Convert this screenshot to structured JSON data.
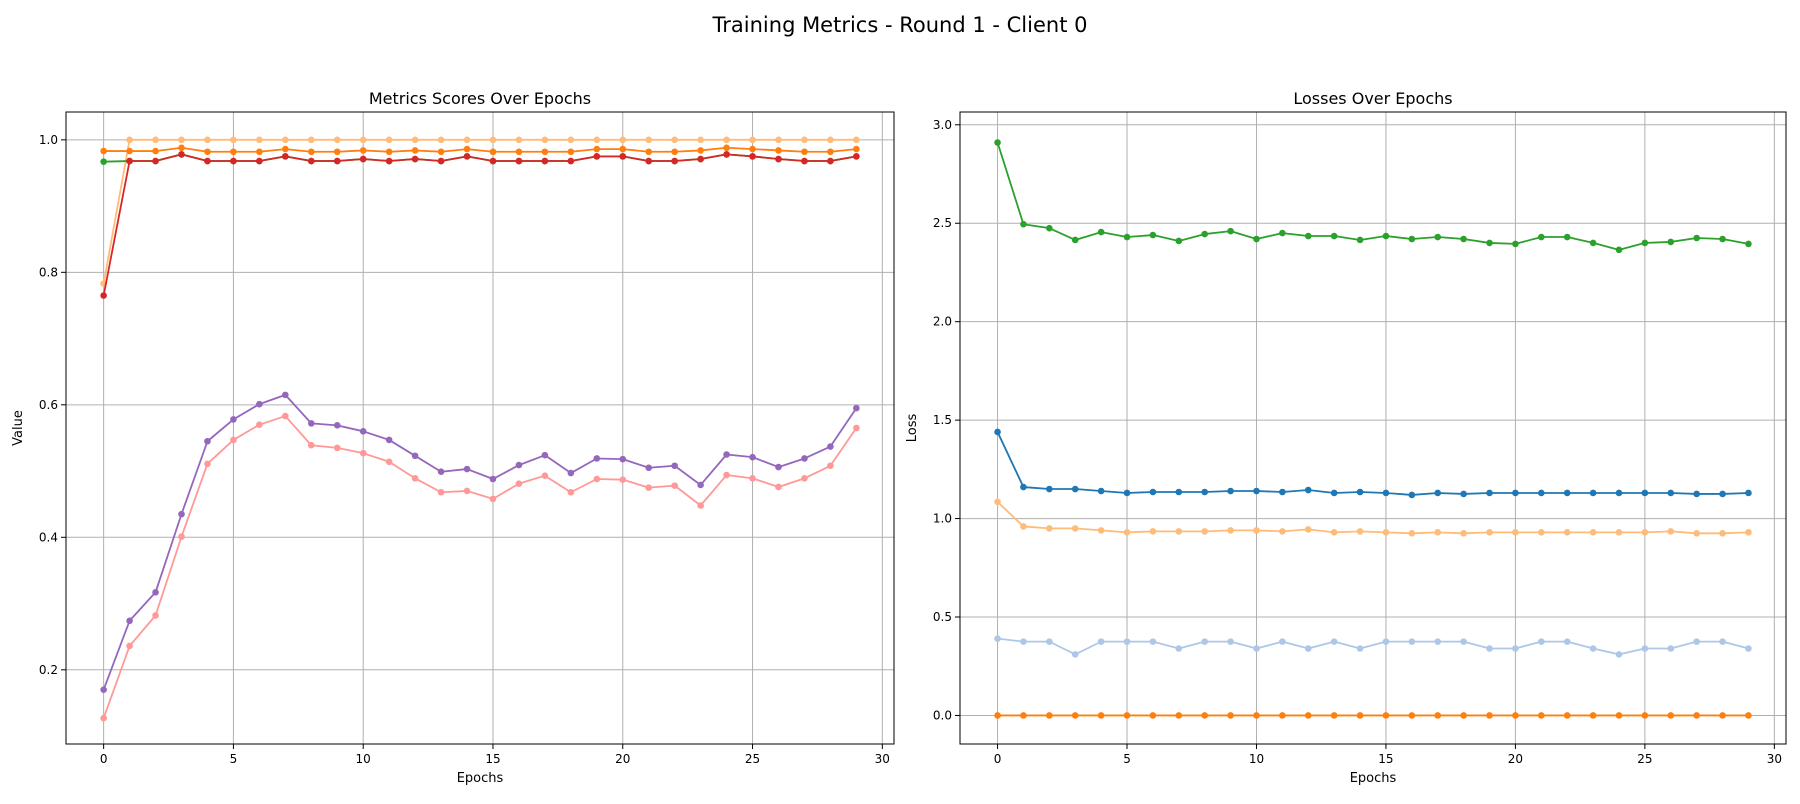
{
  "suptitle": "Training Metrics - Round 1 - Client 0",
  "chart_data": [
    {
      "type": "line",
      "title": "Metrics Scores Over Epochs",
      "xlabel": "Epochs",
      "ylabel": "Value",
      "xlim": [
        -1.45,
        30.45
      ],
      "ylim": [
        0.088,
        1.042
      ],
      "xticks": [
        0,
        5,
        10,
        15,
        20,
        25,
        30
      ],
      "yticks": [
        0.2,
        0.4,
        0.6,
        0.8,
        1.0
      ],
      "ytick_labels": [
        "0.2",
        "0.4",
        "0.6",
        "0.8",
        "1.0"
      ],
      "grid": true,
      "x": [
        0,
        1,
        2,
        3,
        4,
        5,
        6,
        7,
        8,
        9,
        10,
        11,
        12,
        13,
        14,
        15,
        16,
        17,
        18,
        19,
        20,
        21,
        22,
        23,
        24,
        25,
        26,
        27,
        28,
        29
      ],
      "series": [
        {
          "color": "#ffbb78",
          "values": [
            0.783,
            1.0,
            1.0,
            1.0,
            1.0,
            1.0,
            1.0,
            1.0,
            1.0,
            1.0,
            1.0,
            1.0,
            1.0,
            1.0,
            1.0,
            1.0,
            1.0,
            1.0,
            1.0,
            1.0,
            1.0,
            1.0,
            1.0,
            1.0,
            1.0,
            1.0,
            1.0,
            1.0,
            1.0,
            1.0
          ]
        },
        {
          "color": "#ff7f0e",
          "values": [
            0.983,
            0.983,
            0.983,
            0.988,
            0.982,
            0.982,
            0.982,
            0.986,
            0.982,
            0.982,
            0.984,
            0.982,
            0.984,
            0.982,
            0.986,
            0.982,
            0.982,
            0.982,
            0.982,
            0.986,
            0.986,
            0.982,
            0.982,
            0.984,
            0.988,
            0.986,
            0.984,
            0.982,
            0.982,
            0.986
          ]
        },
        {
          "color": "#2ca02c",
          "values": [
            0.967,
            0.968,
            0.968,
            0.978,
            0.968,
            0.968,
            0.968,
            0.975,
            0.968,
            0.968,
            0.971,
            0.968,
            0.971,
            0.968,
            0.975,
            0.968,
            0.968,
            0.968,
            0.968,
            0.975,
            0.975,
            0.968,
            0.968,
            0.971,
            0.978,
            0.975,
            0.971,
            0.968,
            0.968,
            0.975
          ]
        },
        {
          "color": "#d62728",
          "values": [
            0.765,
            0.968,
            0.968,
            0.978,
            0.968,
            0.968,
            0.968,
            0.975,
            0.968,
            0.968,
            0.971,
            0.968,
            0.971,
            0.968,
            0.975,
            0.968,
            0.968,
            0.968,
            0.968,
            0.975,
            0.975,
            0.968,
            0.968,
            0.971,
            0.978,
            0.975,
            0.971,
            0.968,
            0.968,
            0.975
          ]
        },
        {
          "color": "#9467bd",
          "values": [
            0.17,
            0.274,
            0.317,
            0.435,
            0.545,
            0.578,
            0.601,
            0.615,
            0.572,
            0.569,
            0.56,
            0.547,
            0.523,
            0.499,
            0.503,
            0.488,
            0.509,
            0.524,
            0.497,
            0.519,
            0.518,
            0.505,
            0.508,
            0.479,
            0.525,
            0.521,
            0.506,
            0.519,
            0.537,
            0.595
          ]
        },
        {
          "color": "#ff9896",
          "values": [
            0.127,
            0.236,
            0.282,
            0.401,
            0.511,
            0.547,
            0.57,
            0.583,
            0.539,
            0.535,
            0.527,
            0.514,
            0.489,
            0.468,
            0.47,
            0.458,
            0.481,
            0.493,
            0.468,
            0.488,
            0.487,
            0.475,
            0.478,
            0.448,
            0.494,
            0.489,
            0.476,
            0.489,
            0.508,
            0.565
          ]
        }
      ]
    },
    {
      "type": "line",
      "title": "Losses Over Epochs",
      "xlabel": "Epochs",
      "ylabel": "Loss",
      "xlim": [
        -1.45,
        30.45
      ],
      "ylim": [
        -0.145,
        3.065
      ],
      "xticks": [
        0,
        5,
        10,
        15,
        20,
        25,
        30
      ],
      "yticks": [
        0,
        0.5,
        1.0,
        1.5,
        2.0,
        2.5,
        3.0
      ],
      "ytick_labels": [
        "0.0",
        "0.5",
        "1.0",
        "1.5",
        "2.0",
        "2.5",
        "3.0"
      ],
      "grid": true,
      "x": [
        0,
        1,
        2,
        3,
        4,
        5,
        6,
        7,
        8,
        9,
        10,
        11,
        12,
        13,
        14,
        15,
        16,
        17,
        18,
        19,
        20,
        21,
        22,
        23,
        24,
        25,
        26,
        27,
        28,
        29
      ],
      "series": [
        {
          "color": "#2ca02c",
          "values": [
            2.91,
            2.495,
            2.475,
            2.415,
            2.455,
            2.43,
            2.44,
            2.41,
            2.445,
            2.46,
            2.42,
            2.45,
            2.435,
            2.435,
            2.415,
            2.435,
            2.42,
            2.43,
            2.42,
            2.4,
            2.395,
            2.43,
            2.43,
            2.4,
            2.365,
            2.4,
            2.405,
            2.425,
            2.42,
            2.395
          ]
        },
        {
          "color": "#1f77b4",
          "values": [
            1.44,
            1.16,
            1.15,
            1.15,
            1.14,
            1.13,
            1.135,
            1.135,
            1.135,
            1.14,
            1.14,
            1.135,
            1.145,
            1.13,
            1.135,
            1.13,
            1.12,
            1.13,
            1.125,
            1.13,
            1.13,
            1.13,
            1.13,
            1.13,
            1.13,
            1.13,
            1.13,
            1.125,
            1.125,
            1.13
          ]
        },
        {
          "color": "#ffbb78",
          "values": [
            1.085,
            0.96,
            0.95,
            0.95,
            0.94,
            0.93,
            0.935,
            0.935,
            0.935,
            0.94,
            0.94,
            0.935,
            0.945,
            0.93,
            0.935,
            0.93,
            0.925,
            0.93,
            0.925,
            0.93,
            0.93,
            0.93,
            0.93,
            0.93,
            0.93,
            0.93,
            0.935,
            0.925,
            0.925,
            0.93
          ]
        },
        {
          "color": "#aec7e8",
          "values": [
            0.39,
            0.375,
            0.375,
            0.31,
            0.375,
            0.375,
            0.375,
            0.34,
            0.375,
            0.375,
            0.34,
            0.375,
            0.34,
            0.375,
            0.34,
            0.375,
            0.375,
            0.375,
            0.375,
            0.34,
            0.34,
            0.375,
            0.375,
            0.34,
            0.31,
            0.34,
            0.34,
            0.375,
            0.375,
            0.34
          ]
        },
        {
          "color": "#ff7f0e",
          "values": [
            0.0,
            0.0,
            0.0,
            0.0,
            0.0,
            0.0,
            0.0,
            0.0,
            0.0,
            0.0,
            0.0,
            0.0,
            0.0,
            0.0,
            0.0,
            0.0,
            0.0,
            0.0,
            0.0,
            0.0,
            0.0,
            0.0,
            0.0,
            0.0,
            0.0,
            0.0,
            0.0,
            0.0,
            0.0,
            0.0
          ]
        }
      ]
    }
  ]
}
